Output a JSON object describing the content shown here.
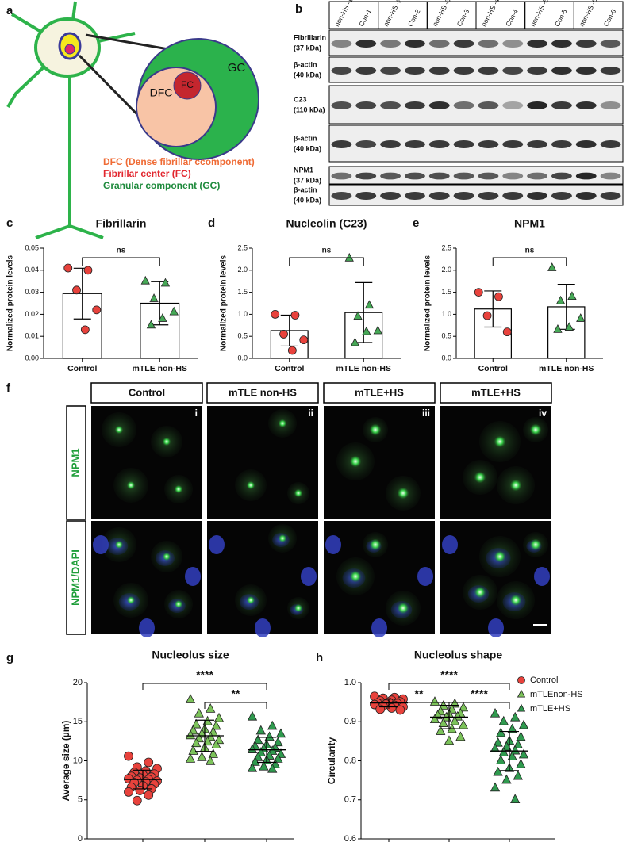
{
  "panel_labels": [
    "a",
    "b",
    "c",
    "d",
    "e",
    "f",
    "g",
    "h"
  ],
  "diagram": {
    "regions": {
      "gc": "GC",
      "dfc": "DFC",
      "fc": "FC"
    },
    "legend": [
      "DFC (Dense fibrillar ccomponent)",
      "Fibrillar center (FC)",
      "Granular component (GC)"
    ]
  },
  "western_blot": {
    "lanes": [
      "non-HS -1",
      "Con-1",
      "non-HS -2",
      "Con-2",
      "non-HS -3",
      "Con-3",
      "non-HS -4",
      "Con-4",
      "non-HS -5",
      "Con-5",
      "non-HS -6",
      "Con-6"
    ],
    "rows": [
      {
        "protein": "Fibrillarin",
        "size": "(37 kDa)"
      },
      {
        "protein": "β-actin",
        "size": "(40 kDa)"
      },
      {
        "protein": "C23",
        "size": "(110 kDa)"
      },
      {
        "protein": "β-actin",
        "size": "(40 kDa)"
      },
      {
        "protein": "NPM1",
        "size": "(37 kDa)"
      },
      {
        "protein": "β-actin",
        "size": "(40 kDa)"
      }
    ]
  },
  "chart_data": [
    {
      "type": "bar",
      "title": "Fibrillarin",
      "y_label": "Normalized protein levels",
      "categories": [
        "Control",
        "mTLE non-HS"
      ],
      "values": [
        0.0294,
        0.025
      ],
      "errors": [
        0.0115,
        0.0098
      ],
      "points": [
        [
          0.041,
          0.04,
          0.031,
          0.022,
          0.013
        ],
        [
          0.035,
          0.034,
          0.027,
          0.021,
          0.018,
          0.015
        ]
      ],
      "point_colors": [
        "#e8423c",
        "#46a856"
      ],
      "point_markers": [
        "circle",
        "triangle"
      ],
      "ylim": [
        0,
        0.05
      ],
      "yticks": [
        {
          "value": 0,
          "label": "0.00"
        },
        {
          "value": 0.01,
          "label": "0.01"
        },
        {
          "value": 0.02,
          "label": "0.02"
        },
        {
          "value": 0.03,
          "label": "0.03"
        },
        {
          "value": 0.04,
          "label": "0.04"
        },
        {
          "value": 0.05,
          "label": "0.05"
        }
      ],
      "significance": [
        {
          "between": [
            0,
            1
          ],
          "label": "ns"
        }
      ]
    },
    {
      "type": "bar",
      "title": "Nucleolin (C23)",
      "y_label": "Normalized protein levels",
      "categories": [
        "Control",
        "mTLE non-HS"
      ],
      "values": [
        0.63,
        1.04
      ],
      "errors": [
        0.35,
        0.68
      ],
      "points": [
        [
          1.0,
          0.98,
          0.55,
          0.42,
          0.18
        ],
        [
          2.27,
          1.2,
          0.95,
          0.62,
          0.6,
          0.35
        ]
      ],
      "point_colors": [
        "#e8423c",
        "#46a856"
      ],
      "point_markers": [
        "circle",
        "triangle"
      ],
      "ylim": [
        0,
        2.5
      ],
      "yticks": [
        {
          "value": 0,
          "label": "0.0"
        },
        0.5,
        {
          "value": 1,
          "label": "1.0"
        },
        1.5,
        {
          "value": 2,
          "label": "2.0"
        },
        2.5
      ],
      "significance": [
        {
          "between": [
            0,
            1
          ],
          "label": "ns"
        }
      ]
    },
    {
      "type": "bar",
      "title": "NPM1",
      "y_label": "Normalized protein levels",
      "categories": [
        "Control",
        "mTLE non-HS"
      ],
      "values": [
        1.12,
        1.17
      ],
      "errors": [
        0.41,
        0.51
      ],
      "points": [
        [
          1.5,
          1.4,
          0.97,
          0.6
        ],
        [
          2.05,
          1.4,
          1.3,
          0.9,
          0.7,
          0.65
        ]
      ],
      "point_colors": [
        "#e8423c",
        "#46a856"
      ],
      "point_markers": [
        "circle",
        "triangle"
      ],
      "ylim": [
        0,
        2.5
      ],
      "yticks": [
        {
          "value": 0,
          "label": "0.0"
        },
        0.5,
        {
          "value": 1,
          "label": "1.0"
        },
        1.5,
        {
          "value": 2,
          "label": "2.0"
        },
        2.5
      ],
      "significance": [
        {
          "between": [
            0,
            1
          ],
          "label": "ns"
        }
      ]
    },
    {
      "type": "strip",
      "title": "Nucleolus size",
      "y_label": "Average size (µm)",
      "series": [
        {
          "color": "#e8423c",
          "marker": "circle",
          "mean": 7.6,
          "sd": 1.2,
          "values": [
            10.6,
            9.8,
            9.2,
            9.0,
            8.7,
            8.5,
            8.3,
            8.2,
            8.0,
            7.9,
            7.8,
            7.7,
            7.6,
            7.5,
            7.4,
            7.3,
            7.2,
            7.0,
            6.8,
            6.6,
            6.4,
            6.2,
            6.0,
            5.6,
            4.9
          ]
        },
        {
          "color": "#7cc35a",
          "marker": "triangle",
          "mean": 13.2,
          "sd": 2.0,
          "values": [
            17.8,
            16.6,
            16.0,
            15.4,
            15.0,
            14.6,
            14.4,
            14.0,
            13.8,
            13.6,
            13.4,
            13.2,
            13.0,
            12.8,
            12.6,
            12.4,
            12.2,
            12.0,
            11.6,
            11.2,
            10.8,
            10.4,
            10.2,
            9.9
          ]
        },
        {
          "color": "#2f9a4e",
          "marker": "triangle",
          "mean": 11.4,
          "sd": 1.6,
          "values": [
            15.6,
            14.4,
            13.8,
            13.4,
            13.0,
            12.6,
            12.3,
            12.0,
            11.8,
            11.6,
            11.5,
            11.4,
            11.2,
            11.0,
            10.8,
            10.6,
            10.4,
            10.2,
            10.0,
            9.8,
            9.5,
            9.2,
            9.0,
            8.9
          ]
        }
      ],
      "ylim": [
        0,
        20
      ],
      "yticks": [
        0,
        5,
        10,
        15,
        20
      ],
      "significance": [
        {
          "between": [
            0,
            2
          ],
          "label": "****"
        },
        {
          "between": [
            1,
            2
          ],
          "label": "**"
        }
      ]
    },
    {
      "type": "strip",
      "title": "Nucleolus shape",
      "y_label": "Circularity",
      "legend": "right",
      "series": [
        {
          "name": "Control",
          "color": "#e8423c",
          "marker": "circle",
          "mean": 0.948,
          "sd": 0.01,
          "values": [
            0.965,
            0.962,
            0.96,
            0.958,
            0.955,
            0.953,
            0.951,
            0.95,
            0.948,
            0.947,
            0.945,
            0.944,
            0.942,
            0.94,
            0.938,
            0.935,
            0.932,
            0.93
          ]
        },
        {
          "name": "mTLEnon-HS",
          "color": "#7cc35a",
          "marker": "triangle",
          "mean": 0.912,
          "sd": 0.03,
          "values": [
            0.95,
            0.945,
            0.94,
            0.935,
            0.93,
            0.925,
            0.92,
            0.918,
            0.915,
            0.912,
            0.91,
            0.905,
            0.9,
            0.895,
            0.89,
            0.88,
            0.875,
            0.86,
            0.85
          ]
        },
        {
          "name": "mTLE+HS",
          "color": "#2f9a4e",
          "marker": "triangle",
          "mean": 0.825,
          "sd": 0.05,
          "values": [
            0.92,
            0.91,
            0.9,
            0.89,
            0.88,
            0.87,
            0.86,
            0.85,
            0.845,
            0.84,
            0.835,
            0.83,
            0.825,
            0.82,
            0.815,
            0.81,
            0.8,
            0.79,
            0.78,
            0.77,
            0.76,
            0.75,
            0.73,
            0.7
          ]
        }
      ],
      "ylim": [
        0.6,
        1.0
      ],
      "yticks": [
        0.6,
        0.7,
        0.8,
        0.9,
        {
          "value": 1.0,
          "label": "1.0"
        }
      ],
      "significance": [
        {
          "between": [
            0,
            2
          ],
          "label": "****"
        },
        {
          "between": [
            0,
            1
          ],
          "label": "**"
        },
        {
          "between": [
            1,
            2
          ],
          "label": "****"
        }
      ]
    }
  ],
  "micrographs": {
    "columns": [
      {
        "title": "Control",
        "index": "i"
      },
      {
        "title": "mTLE non-HS",
        "index": "ii"
      },
      {
        "title": "mTLE+HS",
        "index": "iii"
      },
      {
        "title": "mTLE+HS",
        "index": "iv"
      }
    ],
    "rows": [
      "NPM1",
      "NPM1/DAPI"
    ]
  }
}
